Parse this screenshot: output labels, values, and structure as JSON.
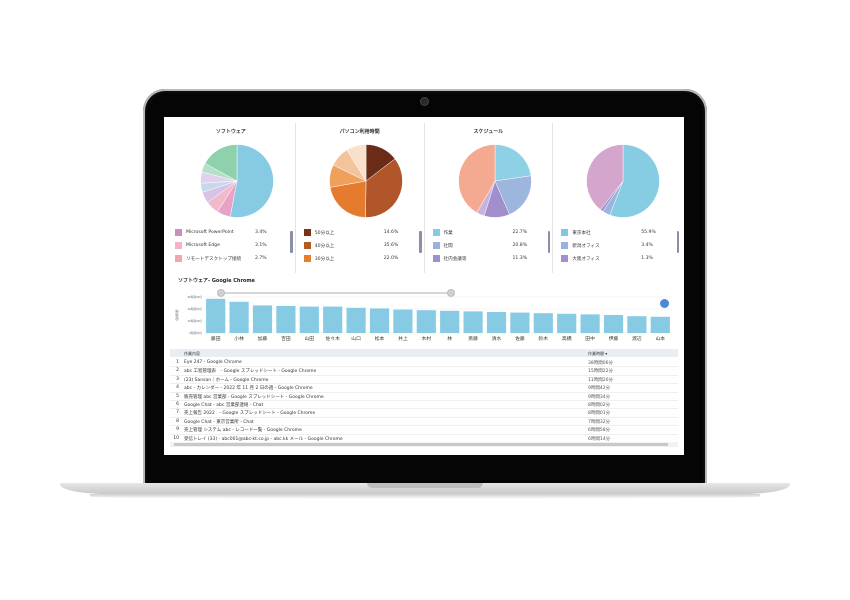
{
  "panels": [
    {
      "title": "ソフトウェア",
      "slices": [
        {
          "pct": 53,
          "color": "#86cbe3"
        },
        {
          "pct": 6,
          "color": "#e6a3c6"
        },
        {
          "pct": 6,
          "color": "#f2b8cc"
        },
        {
          "pct": 5,
          "color": "#d7c3e6"
        },
        {
          "pct": 4,
          "color": "#c7d7f0"
        },
        {
          "pct": 5,
          "color": "#e0d2ec"
        },
        {
          "pct": 4,
          "color": "#b3e0c8"
        },
        {
          "pct": 17,
          "color": "#8fd0ad"
        }
      ],
      "legend": [
        {
          "label": "Microsoft PowerPoint",
          "value": "3.4%",
          "color": "#c98fbf"
        },
        {
          "label": "Microsoft Edge",
          "value": "3.1%",
          "color": "#f5b3c8"
        },
        {
          "label": "リモートデスクトップ接続",
          "value": "2.7%",
          "color": "#f2a2b3"
        }
      ]
    },
    {
      "title": "パソコン利用時間",
      "slices": [
        {
          "pct": 14.6,
          "color": "#6b2c17"
        },
        {
          "pct": 35.6,
          "color": "#b0562a"
        },
        {
          "pct": 22.0,
          "color": "#e57b2f"
        },
        {
          "pct": 10,
          "color": "#eea05c"
        },
        {
          "pct": 9,
          "color": "#f3c39b"
        },
        {
          "pct": 8.8,
          "color": "#f8e0cb"
        }
      ],
      "legend": [
        {
          "label": "50分以上",
          "value": "14.6%",
          "color": "#7a3216"
        },
        {
          "label": "40分以上",
          "value": "35.6%",
          "color": "#b55a25"
        },
        {
          "label": "30分以上",
          "value": "22.0%",
          "color": "#e67e2a"
        }
      ]
    },
    {
      "title": "スケジュール",
      "slices": [
        {
          "pct": 22.7,
          "color": "#8ed0e6"
        },
        {
          "pct": 20.8,
          "color": "#9db6dd"
        },
        {
          "pct": 11.3,
          "color": "#a18fcd"
        },
        {
          "pct": 3.5,
          "color": "#c9b3dc"
        },
        {
          "pct": 41.7,
          "color": "#f4aa90"
        }
      ],
      "legend": [
        {
          "label": "作業",
          "value": "22.7%",
          "color": "#83cbe6"
        },
        {
          "label": "社間",
          "value": "20.8%",
          "color": "#9bb1dc"
        },
        {
          "label": "社内会議等",
          "value": "11.3%",
          "color": "#9e8fcf"
        }
      ]
    },
    {
      "title": "",
      "slices": [
        {
          "pct": 55.9,
          "color": "#86cde4"
        },
        {
          "pct": 3.4,
          "color": "#99b5dc"
        },
        {
          "pct": 1.3,
          "color": "#a48fd0"
        },
        {
          "pct": 39.4,
          "color": "#d4a6cd"
        }
      ],
      "legend": [
        {
          "label": "東京本社",
          "value": "55.9%",
          "color": "#7ec8e4"
        },
        {
          "label": "新潟オフィス",
          "value": "3.4%",
          "color": "#98b4de"
        },
        {
          "label": "大阪オフィス",
          "value": "1.3%",
          "color": "#a38fce"
        }
      ]
    }
  ],
  "bar_section": {
    "title": "ソフトウェア- Google Chrome",
    "y_axis_label": "使用時間",
    "range_start": 0.0,
    "range_end": 1.0
  },
  "chart_data": {
    "type": "bar",
    "title": "ソフトウェア- Google Chrome",
    "ylabel": "使用時間",
    "yticks": [
      "60時間00分",
      "40時間00分",
      "20時間00分",
      "0時間00分"
    ],
    "ylim": [
      0,
      60
    ],
    "categories": [
      "藤田",
      "小林",
      "加藤",
      "吉田",
      "山田",
      "佐々木",
      "山口",
      "松本",
      "井上",
      "木村",
      "林",
      "斎藤",
      "清水",
      "佐藤",
      "鈴木",
      "高橋",
      "田中",
      "伊藤",
      "渡辺",
      "山本"
    ],
    "values": [
      57,
      52,
      46,
      45,
      44,
      44,
      42,
      41,
      39,
      38,
      37,
      36,
      35,
      34,
      33,
      32,
      31,
      30,
      28,
      27
    ],
    "color": "#86cbe3"
  },
  "table": {
    "headers": {
      "title": "作業内容",
      "time": "作業時間 ▾"
    },
    "rows": [
      {
        "no": "1",
        "title": "Eye 247 - Google Chrome",
        "time": "38時間06分"
      },
      {
        "no": "2",
        "title": "abc 工程管理表　- Google スプレッドシート - Google Chrome",
        "time": "15時間22分"
      },
      {
        "no": "3",
        "title": "(23) Sansan｜ホーム - Google Chrome",
        "time": "11時間20分"
      },
      {
        "no": "4",
        "title": "abc - カレンダー - 2022 年 11 月 2 日の週 - Google Chrome",
        "time": "9時間42分"
      },
      {
        "no": "5",
        "title": "販売管理 abc 営業部 - Google スプレッドシート - Google Chrome",
        "time": "9時間34分"
      },
      {
        "no": "6",
        "title": "Google Chat - abc 営業部連絡 - Chat",
        "time": "8時間02分"
      },
      {
        "no": "7",
        "title": "売上報告 2022　- Google スプレッドシート - Google Chrome",
        "time": "8時間01分"
      },
      {
        "no": "8",
        "title": "Google Chat - 東京営業所 - Chat",
        "time": "7時間32分"
      },
      {
        "no": "9",
        "title": "売上管理 システム abc - レコード一覧 - Google Chrome",
        "time": "6時間58分"
      },
      {
        "no": "10",
        "title": "受信トレイ (33) - abc001@abc-kt.co.jp - abc.kk メール - Google Chrome",
        "time": "6時間14分"
      }
    ]
  }
}
